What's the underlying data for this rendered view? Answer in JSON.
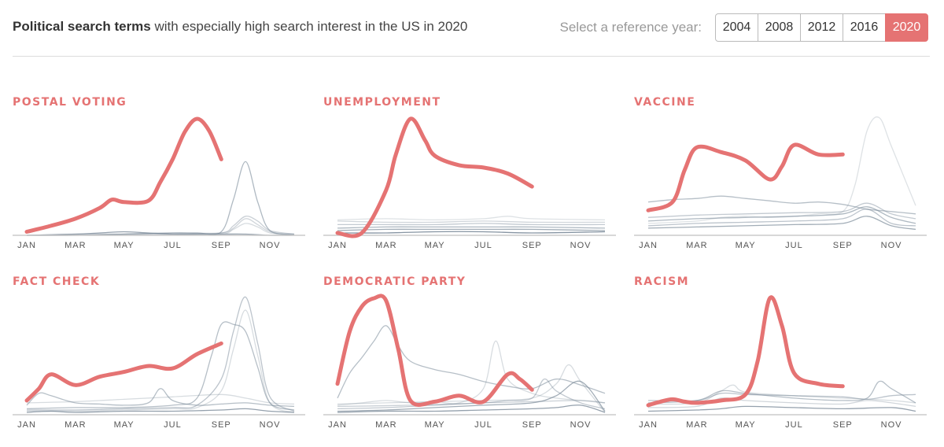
{
  "header": {
    "title_bold": "Political search terms",
    "title_rest": " with especially high search interest in the US in 2020",
    "reference_label": "Select a reference year:",
    "years": [
      "2004",
      "2008",
      "2012",
      "2016",
      "2020"
    ],
    "selected_year": "2020"
  },
  "colors": {
    "highlight": "#e57373",
    "reference": "#7a8a99",
    "axis": "#cccccc"
  },
  "chart_data": [
    {
      "type": "line",
      "title": "POSTAL VOTING",
      "xticks": [
        "JAN",
        "MAR",
        "MAY",
        "JUL",
        "SEP",
        "NOV"
      ],
      "xlim": [
        0,
        11
      ],
      "ylim": [
        0,
        100
      ],
      "highlight": {
        "name": "2020",
        "x": [
          0,
          1,
          2,
          3,
          3.5,
          4,
          5,
          5.5,
          6,
          6.5,
          7,
          7.5,
          8
        ],
        "y": [
          3,
          8,
          14,
          23,
          30,
          28,
          29,
          45,
          64,
          87,
          98,
          88,
          64
        ]
      },
      "reference": [
        {
          "x": [
            0,
            2,
            4,
            6,
            7,
            8,
            8.5,
            9,
            9.5,
            10,
            11
          ],
          "y": [
            0,
            0,
            1,
            2,
            2,
            3,
            30,
            62,
            28,
            4,
            1
          ],
          "o": 0.6
        },
        {
          "x": [
            0,
            2,
            4,
            6,
            8,
            8.5,
            9,
            9.5,
            10,
            11
          ],
          "y": [
            0,
            1,
            1,
            1,
            2,
            8,
            16,
            12,
            4,
            1
          ],
          "o": 0.4
        },
        {
          "x": [
            0,
            2,
            4,
            6,
            8,
            8.5,
            9,
            9.5,
            10,
            11
          ],
          "y": [
            0,
            0,
            1,
            2,
            2,
            6,
            14,
            9,
            3,
            0
          ],
          "o": 0.35
        },
        {
          "x": [
            0,
            2,
            3,
            4,
            5,
            6,
            7,
            8,
            9,
            10,
            11
          ],
          "y": [
            0,
            1,
            2,
            3,
            2,
            1,
            1,
            1,
            1,
            0,
            0
          ],
          "o": 0.8
        },
        {
          "x": [
            0,
            3,
            6,
            8,
            8.5,
            9,
            9.5,
            10,
            11
          ],
          "y": [
            0,
            0,
            0,
            1,
            5,
            10,
            7,
            2,
            0
          ],
          "o": 0.3
        }
      ]
    },
    {
      "type": "line",
      "title": "UNEMPLOYMENT",
      "xticks": [
        "JAN",
        "MAR",
        "MAY",
        "JUL",
        "SEP",
        "NOV"
      ],
      "xlim": [
        0,
        11
      ],
      "ylim": [
        0,
        100
      ],
      "highlight": {
        "name": "2020",
        "x": [
          0,
          1,
          2,
          2.4,
          3,
          3.6,
          4,
          5,
          6,
          7,
          8
        ],
        "y": [
          2,
          2,
          38,
          68,
          98,
          80,
          67,
          59,
          57,
          52,
          41
        ]
      },
      "reference": [
        {
          "x": [
            0,
            2,
            4,
            6,
            8,
            11
          ],
          "y": [
            12,
            11,
            11,
            12,
            11,
            11
          ],
          "o": 0.35
        },
        {
          "x": [
            0,
            2,
            4,
            6,
            8,
            11
          ],
          "y": [
            9,
            9,
            9,
            10,
            9,
            9
          ],
          "o": 0.45
        },
        {
          "x": [
            0,
            2,
            4,
            6,
            8,
            11
          ],
          "y": [
            6,
            7,
            7,
            7,
            7,
            6
          ],
          "o": 0.6
        },
        {
          "x": [
            0,
            2,
            4,
            6,
            8,
            11
          ],
          "y": [
            4,
            5,
            5,
            5,
            5,
            4
          ],
          "o": 0.7
        },
        {
          "x": [
            0,
            2,
            4,
            6,
            8,
            11
          ],
          "y": [
            2,
            2,
            3,
            3,
            2,
            3
          ],
          "o": 0.9
        },
        {
          "x": [
            0,
            2,
            4,
            6,
            7,
            8,
            11
          ],
          "y": [
            13,
            14,
            13,
            14,
            16,
            14,
            13
          ],
          "o": 0.25
        }
      ]
    },
    {
      "type": "line",
      "title": "VACCINE",
      "xticks": [
        "JAN",
        "MAR",
        "MAY",
        "JUL",
        "SEP",
        "NOV"
      ],
      "xlim": [
        0,
        11
      ],
      "ylim": [
        0,
        100
      ],
      "highlight": {
        "name": "2020",
        "x": [
          0,
          1,
          1.5,
          2,
          3,
          4,
          5,
          5.5,
          6,
          7,
          8
        ],
        "y": [
          21,
          28,
          55,
          74,
          70,
          63,
          47,
          58,
          76,
          68,
          68
        ]
      },
      "reference": [
        {
          "x": [
            0,
            2,
            3,
            4,
            5,
            6,
            7,
            8,
            8.5,
            9,
            9.5,
            10,
            11
          ],
          "y": [
            10,
            12,
            15,
            16,
            15,
            16,
            18,
            20,
            42,
            88,
            99,
            75,
            25
          ],
          "o": 0.25
        },
        {
          "x": [
            0,
            1,
            2,
            3,
            4,
            5,
            6,
            7,
            8,
            9,
            10,
            11
          ],
          "y": [
            28,
            30,
            31,
            33,
            31,
            29,
            27,
            28,
            26,
            22,
            20,
            18
          ],
          "o": 0.55
        },
        {
          "x": [
            0,
            2,
            4,
            6,
            8,
            9,
            10,
            11
          ],
          "y": [
            12,
            14,
            15,
            16,
            18,
            24,
            15,
            10
          ],
          "o": 0.6
        },
        {
          "x": [
            0,
            2,
            4,
            6,
            8,
            9,
            10,
            11
          ],
          "y": [
            8,
            10,
            11,
            12,
            14,
            22,
            10,
            8
          ],
          "o": 0.5
        },
        {
          "x": [
            0,
            2,
            4,
            6,
            8,
            9,
            10,
            11
          ],
          "y": [
            15,
            17,
            18,
            19,
            20,
            27,
            18,
            14
          ],
          "o": 0.45
        },
        {
          "x": [
            0,
            2,
            4,
            6,
            8,
            9,
            10,
            11
          ],
          "y": [
            6,
            7,
            8,
            9,
            10,
            16,
            8,
            5
          ],
          "o": 0.7
        }
      ]
    },
    {
      "type": "line",
      "title": "FACT CHECK",
      "xticks": [
        "JAN",
        "MAR",
        "MAY",
        "JUL",
        "SEP",
        "NOV"
      ],
      "xlim": [
        0,
        11
      ],
      "ylim": [
        0,
        100
      ],
      "highlight": {
        "name": "2020",
        "x": [
          0,
          0.5,
          1,
          2,
          3,
          4,
          5,
          6,
          7,
          8
        ],
        "y": [
          12,
          22,
          34,
          25,
          32,
          36,
          41,
          39,
          51,
          60
        ]
      },
      "reference": [
        {
          "x": [
            0,
            2,
            4,
            6,
            7,
            7.6,
            8,
            8.5,
            9,
            9.5,
            10,
            11
          ],
          "y": [
            5,
            6,
            6,
            8,
            14,
            50,
            76,
            76,
            70,
            40,
            10,
            4
          ],
          "o": 0.55
        },
        {
          "x": [
            0,
            2,
            4,
            6,
            7,
            8,
            8.5,
            9,
            9.5,
            10,
            11
          ],
          "y": [
            4,
            4,
            5,
            6,
            8,
            30,
            70,
            99,
            60,
            15,
            3
          ],
          "o": 0.5
        },
        {
          "x": [
            0,
            2,
            4,
            6,
            7,
            8,
            8.5,
            9,
            9.5,
            10,
            11
          ],
          "y": [
            3,
            3,
            4,
            5,
            6,
            20,
            55,
            88,
            50,
            10,
            2
          ],
          "o": 0.3
        },
        {
          "x": [
            0,
            0.5,
            1,
            2,
            3,
            4,
            5,
            5.5,
            6,
            7,
            8,
            9,
            10,
            11
          ],
          "y": [
            8,
            18,
            16,
            10,
            9,
            8,
            10,
            22,
            12,
            8,
            9,
            10,
            8,
            7
          ],
          "o": 0.55
        },
        {
          "x": [
            0,
            2,
            4,
            6,
            8,
            9,
            10,
            11
          ],
          "y": [
            10,
            11,
            13,
            15,
            17,
            14,
            10,
            9
          ],
          "o": 0.3
        },
        {
          "x": [
            0,
            1,
            2,
            4,
            6,
            8,
            9,
            10,
            11
          ],
          "y": [
            2,
            3,
            2,
            3,
            3,
            4,
            5,
            3,
            2
          ],
          "o": 0.8
        }
      ]
    },
    {
      "type": "line",
      "title": "DEMOCRATIC PARTY",
      "xticks": [
        "JAN",
        "MAR",
        "MAY",
        "JUL",
        "SEP",
        "NOV"
      ],
      "xlim": [
        0,
        11
      ],
      "ylim": [
        0,
        100
      ],
      "highlight": {
        "name": "2020",
        "x": [
          0,
          0.5,
          1,
          1.5,
          2,
          2.5,
          3,
          4,
          5,
          6,
          7,
          7.5,
          8
        ],
        "y": [
          26,
          70,
          91,
          98,
          96,
          55,
          12,
          11,
          16,
          11,
          34,
          30,
          21
        ]
      },
      "reference": [
        {
          "x": [
            0,
            0.5,
            1,
            1.5,
            2,
            2.5,
            3,
            4,
            5,
            6,
            7,
            8,
            9,
            10,
            11
          ],
          "y": [
            14,
            35,
            48,
            62,
            75,
            58,
            45,
            38,
            34,
            28,
            24,
            22,
            30,
            25,
            18
          ],
          "o": 0.55
        },
        {
          "x": [
            0,
            1,
            2,
            3,
            4,
            5,
            6,
            6.5,
            7,
            8,
            9,
            10,
            11
          ],
          "y": [
            8,
            10,
            12,
            10,
            11,
            10,
            22,
            62,
            30,
            18,
            14,
            12,
            10
          ],
          "o": 0.3
        },
        {
          "x": [
            0,
            2,
            4,
            6,
            7,
            8,
            8.5,
            9,
            10,
            11
          ],
          "y": [
            5,
            6,
            8,
            10,
            12,
            14,
            30,
            20,
            10,
            5
          ],
          "o": 0.45
        },
        {
          "x": [
            0,
            2,
            4,
            6,
            8,
            9,
            9.5,
            10,
            11
          ],
          "y": [
            9,
            10,
            11,
            12,
            14,
            26,
            42,
            28,
            2
          ],
          "o": 0.3
        },
        {
          "x": [
            0,
            2,
            4,
            6,
            8,
            9,
            10,
            11
          ],
          "y": [
            3,
            4,
            6,
            8,
            10,
            16,
            28,
            3
          ],
          "o": 0.7
        },
        {
          "x": [
            0,
            3,
            6,
            8,
            10,
            11
          ],
          "y": [
            7,
            8,
            10,
            11,
            12,
            10
          ],
          "o": 0.4
        },
        {
          "x": [
            0,
            2,
            4,
            6,
            8,
            9,
            10,
            11
          ],
          "y": [
            2,
            3,
            3,
            4,
            5,
            6,
            8,
            2
          ],
          "o": 0.8
        }
      ]
    },
    {
      "type": "line",
      "title": "RACISM",
      "xticks": [
        "JAN",
        "MAR",
        "MAY",
        "JUL",
        "SEP",
        "NOV"
      ],
      "xlim": [
        0,
        11
      ],
      "ylim": [
        0,
        100
      ],
      "highlight": {
        "name": "2020",
        "x": [
          0,
          0.5,
          1,
          1.5,
          2,
          3,
          4,
          4.5,
          5,
          5.5,
          6,
          7,
          8
        ],
        "y": [
          8,
          11,
          13,
          11,
          10,
          12,
          17,
          45,
          98,
          75,
          35,
          26,
          24
        ]
      },
      "reference": [
        {
          "x": [
            0,
            2,
            3,
            4,
            6,
            8,
            9,
            9.5,
            10,
            11
          ],
          "y": [
            10,
            12,
            20,
            18,
            14,
            12,
            14,
            28,
            22,
            10
          ],
          "o": 0.55
        },
        {
          "x": [
            0,
            2,
            3,
            4,
            6,
            8,
            9,
            10,
            11
          ],
          "y": [
            12,
            12,
            18,
            17,
            16,
            15,
            13,
            16,
            17
          ],
          "o": 0.5
        },
        {
          "x": [
            0,
            2,
            3,
            4,
            6,
            8,
            9,
            10,
            11
          ],
          "y": [
            6,
            7,
            14,
            12,
            10,
            9,
            12,
            10,
            7
          ],
          "o": 0.35
        },
        {
          "x": [
            0,
            2,
            3,
            4,
            6,
            8,
            10,
            11
          ],
          "y": [
            3,
            4,
            5,
            7,
            6,
            5,
            6,
            3
          ],
          "o": 0.8
        },
        {
          "x": [
            0,
            2,
            3,
            3.5,
            4,
            6,
            8,
            10,
            11
          ],
          "y": [
            9,
            10,
            20,
            25,
            19,
            16,
            14,
            12,
            10
          ],
          "o": 0.3
        }
      ]
    }
  ]
}
